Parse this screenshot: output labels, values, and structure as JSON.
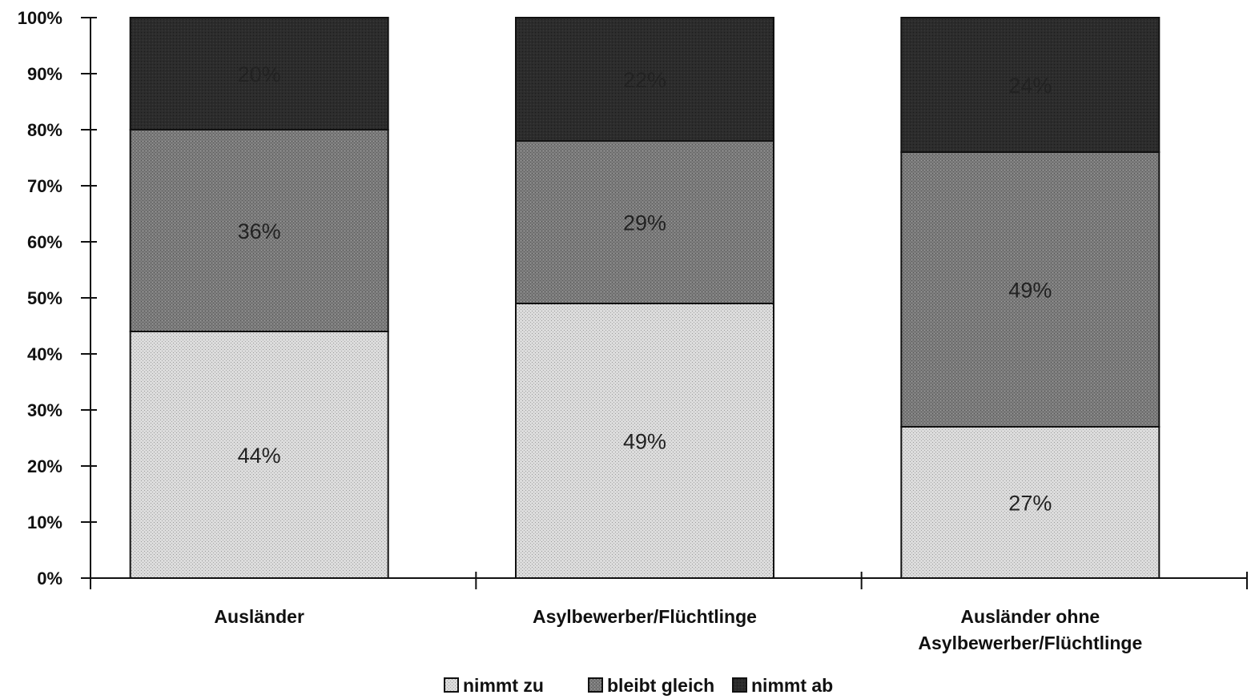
{
  "chart_data": {
    "type": "bar",
    "stacked": true,
    "categories": [
      [
        "Ausländer"
      ],
      [
        "Asylbewerber/Flüchtlinge"
      ],
      [
        "Ausländer ohne",
        "Asylbewerber/Flüchtlinge"
      ]
    ],
    "series": [
      {
        "name": "nimmt zu",
        "values": [
          44,
          49,
          27
        ],
        "labels": [
          "44%",
          "49%",
          "27%"
        ],
        "color": "#d9d9d9"
      },
      {
        "name": "bleibt gleich",
        "values": [
          36,
          29,
          49
        ],
        "labels": [
          "36%",
          "29%",
          "49%"
        ],
        "color": "#7a7a7a"
      },
      {
        "name": "nimmt ab",
        "values": [
          20,
          22,
          24
        ],
        "labels": [
          "20%",
          "22%",
          "24%"
        ],
        "color": "#2e2e2e"
      }
    ],
    "y_ticks": [
      "0%",
      "10%",
      "20%",
      "30%",
      "40%",
      "50%",
      "60%",
      "70%",
      "80%",
      "90%",
      "100%"
    ],
    "ylim": [
      0,
      100
    ],
    "grid": false,
    "legend_position": "bottom-center"
  }
}
